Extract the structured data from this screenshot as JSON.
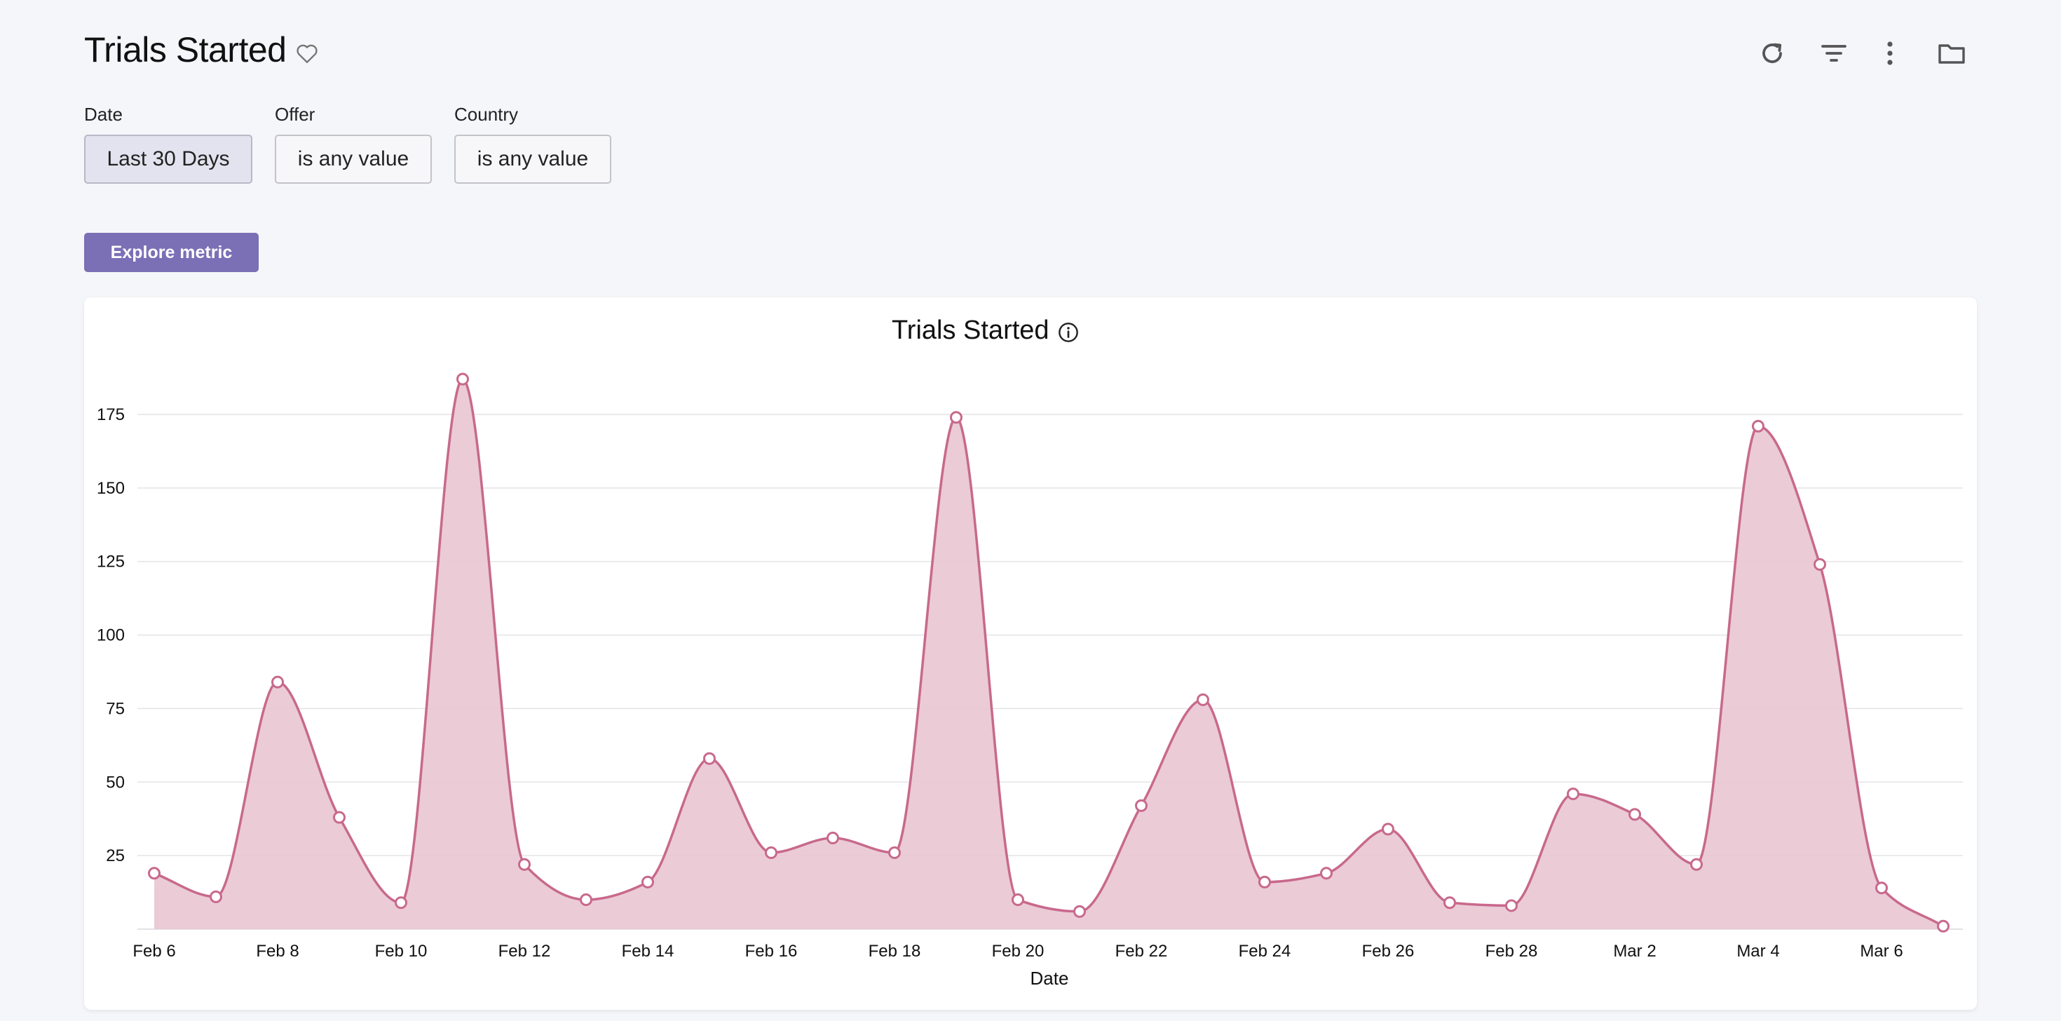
{
  "header": {
    "title": "Trials Started"
  },
  "filters": [
    {
      "label": "Date",
      "value": "Last 30 Days"
    },
    {
      "label": "Offer",
      "value": "is any value"
    },
    {
      "label": "Country",
      "value": "is any value"
    }
  ],
  "explore_button": "Explore metric",
  "colors": {
    "accent": "#7b6fb6",
    "series_line": "#c8698c",
    "series_fill": "#e9c5d2"
  },
  "chart_data": {
    "type": "area",
    "title": "Trials Started",
    "xlabel": "Date",
    "ylabel": "",
    "ylim": [
      0,
      190
    ],
    "yticks": [
      25,
      50,
      75,
      100,
      125,
      150,
      175
    ],
    "x_tick_labels": [
      "Feb 6",
      "Feb 8",
      "Feb 10",
      "Feb 12",
      "Feb 14",
      "Feb 16",
      "Feb 18",
      "Feb 20",
      "Feb 22",
      "Feb 24",
      "Feb 26",
      "Feb 28",
      "Mar 2",
      "Mar 4",
      "Mar 6"
    ],
    "x": [
      "Feb 6",
      "Feb 7",
      "Feb 8",
      "Feb 9",
      "Feb 10",
      "Feb 11",
      "Feb 12",
      "Feb 13",
      "Feb 14",
      "Feb 15",
      "Feb 16",
      "Feb 17",
      "Feb 18",
      "Feb 19",
      "Feb 20",
      "Feb 21",
      "Feb 22",
      "Feb 23",
      "Feb 24",
      "Feb 25",
      "Feb 26",
      "Feb 27",
      "Feb 28",
      "Mar 1",
      "Mar 2",
      "Mar 3",
      "Mar 4",
      "Mar 5",
      "Mar 6",
      "Mar 7"
    ],
    "series": [
      {
        "name": "Trials Started",
        "values": [
          19,
          11,
          84,
          38,
          9,
          187,
          22,
          10,
          16,
          58,
          26,
          31,
          26,
          174,
          10,
          6,
          42,
          78,
          16,
          19,
          34,
          9,
          8,
          46,
          39,
          22,
          171,
          124,
          14,
          1
        ]
      }
    ]
  }
}
